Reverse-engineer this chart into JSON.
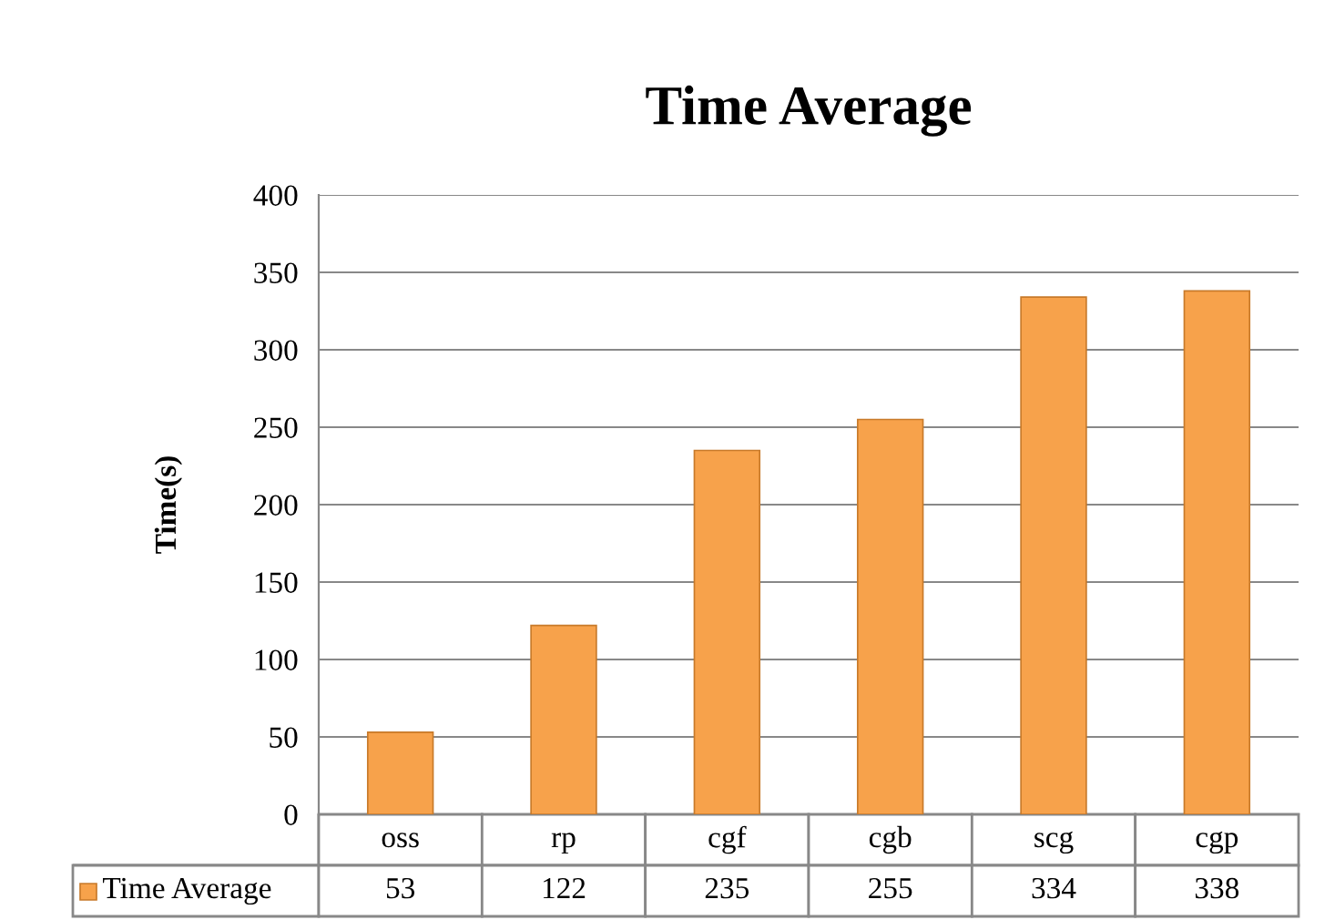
{
  "chart_data": {
    "type": "bar",
    "title": "Time Average",
    "ylabel": "Time(s)",
    "categories": [
      "oss",
      "rp",
      "cgf",
      "cgb",
      "scg",
      "cgp"
    ],
    "series": [
      {
        "name": "Time Average",
        "color": "#f7a24b",
        "values": [
          53,
          122,
          235,
          255,
          334,
          338
        ]
      }
    ],
    "ylim": [
      0,
      400
    ],
    "yticks": [
      0,
      50,
      100,
      150,
      200,
      250,
      300,
      350,
      400
    ],
    "grid": "y",
    "legend": "bottom",
    "data_labels": true
  }
}
